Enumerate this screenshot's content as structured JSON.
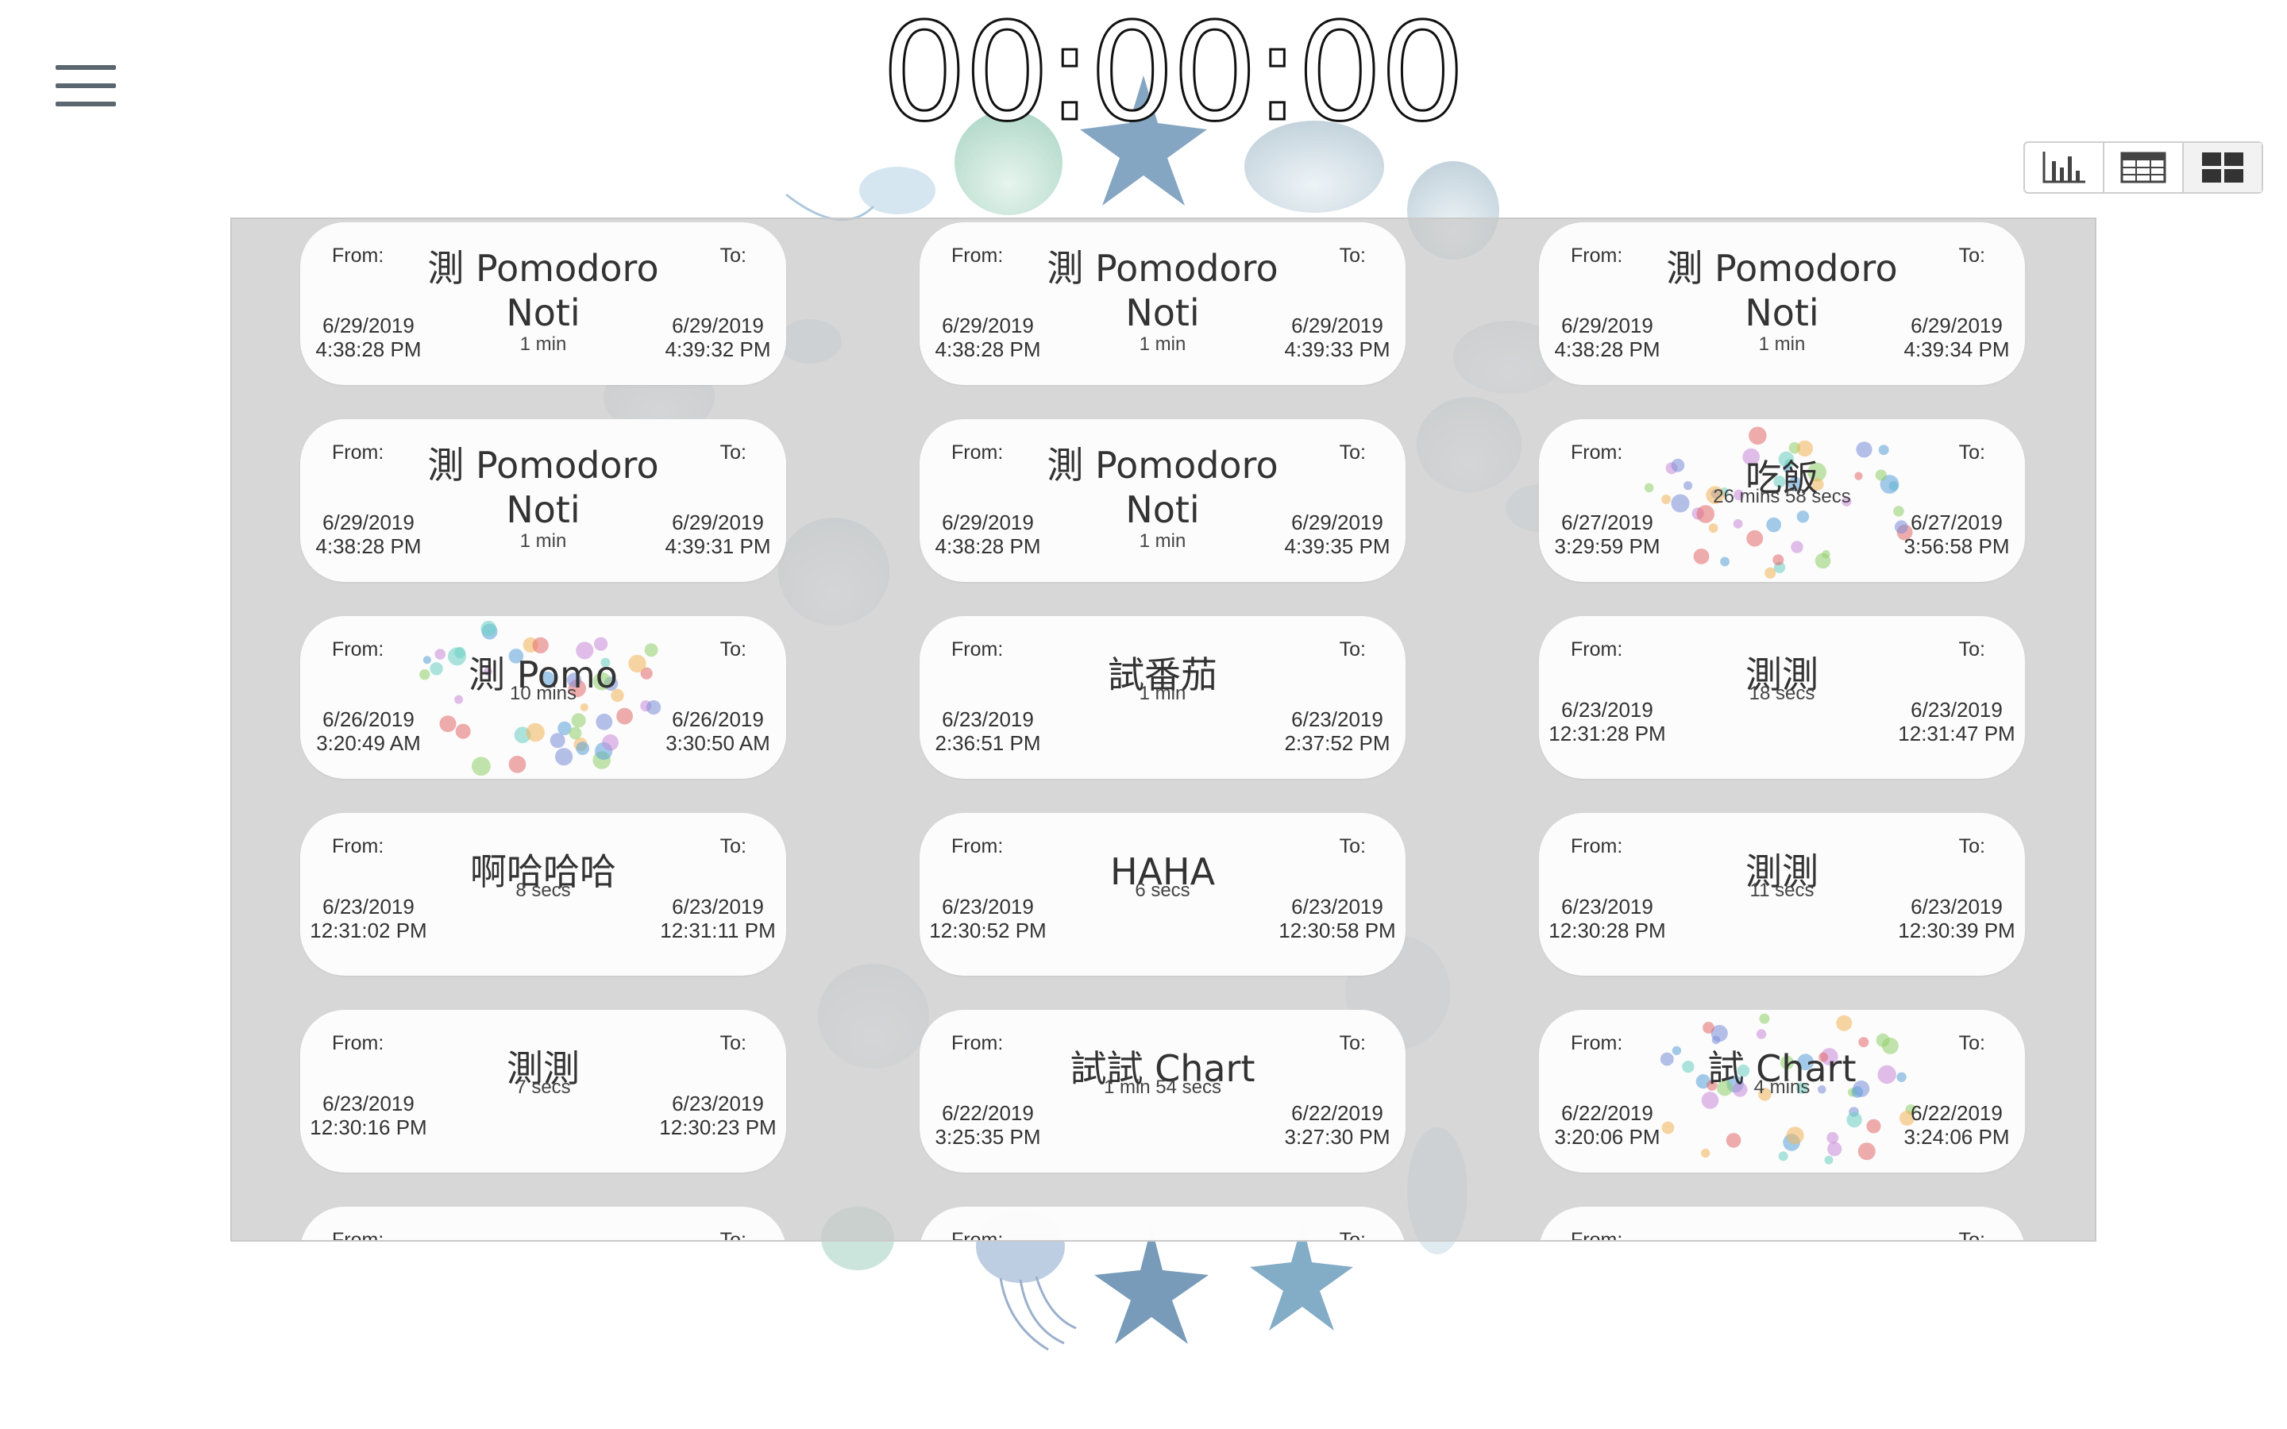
{
  "timer": {
    "display": "00:00:00"
  },
  "menu": {
    "icon": "hamburger-menu-icon"
  },
  "view_switch": [
    {
      "name": "chart-view",
      "icon": "bar-chart-icon",
      "active": false
    },
    {
      "name": "table-view",
      "icon": "table-icon",
      "active": false
    },
    {
      "name": "card-view",
      "icon": "grid-icon",
      "active": true
    }
  ],
  "labels": {
    "from": "From:",
    "to": "To:"
  },
  "records": [
    {
      "title": "測 Pomodoro Noti",
      "duration": "1 min",
      "from_date": "6/29/2019",
      "from_time": "4:38:28 PM",
      "to_date": "6/29/2019",
      "to_time": "4:39:32 PM"
    },
    {
      "title": "測 Pomodoro Noti",
      "duration": "1 min",
      "from_date": "6/29/2019",
      "from_time": "4:38:28 PM",
      "to_date": "6/29/2019",
      "to_time": "4:39:33 PM"
    },
    {
      "title": "測 Pomodoro Noti",
      "duration": "1 min",
      "from_date": "6/29/2019",
      "from_time": "4:38:28 PM",
      "to_date": "6/29/2019",
      "to_time": "4:39:34 PM"
    },
    {
      "title": "測 Pomodoro Noti",
      "duration": "1 min",
      "from_date": "6/29/2019",
      "from_time": "4:38:28 PM",
      "to_date": "6/29/2019",
      "to_time": "4:39:31 PM"
    },
    {
      "title": "測 Pomodoro Noti",
      "duration": "1 min",
      "from_date": "6/29/2019",
      "from_time": "4:38:28 PM",
      "to_date": "6/29/2019",
      "to_time": "4:39:35 PM"
    },
    {
      "title": "吃飯",
      "duration": "26 mins 58 secs",
      "from_date": "6/27/2019",
      "from_time": "3:29:59 PM",
      "to_date": "6/27/2019",
      "to_time": "3:56:58 PM",
      "background": true
    },
    {
      "title": "測 Pomo",
      "duration": "10 mins",
      "from_date": "6/26/2019",
      "from_time": "3:20:49 AM",
      "to_date": "6/26/2019",
      "to_time": "3:30:50 AM",
      "background": true
    },
    {
      "title": "試番茄",
      "duration": "1 min",
      "from_date": "6/23/2019",
      "from_time": "2:36:51 PM",
      "to_date": "6/23/2019",
      "to_time": "2:37:52 PM"
    },
    {
      "title": "測測",
      "duration": "18 secs",
      "from_date": "6/23/2019",
      "from_time": "12:31:28 PM",
      "to_date": "6/23/2019",
      "to_time": "12:31:47 PM"
    },
    {
      "title": "啊哈哈哈",
      "duration": "8 secs",
      "from_date": "6/23/2019",
      "from_time": "12:31:02 PM",
      "to_date": "6/23/2019",
      "to_time": "12:31:11 PM"
    },
    {
      "title": "HAHA",
      "duration": "6 secs",
      "from_date": "6/23/2019",
      "from_time": "12:30:52 PM",
      "to_date": "6/23/2019",
      "to_time": "12:30:58 PM"
    },
    {
      "title": "測測",
      "duration": "11 secs",
      "from_date": "6/23/2019",
      "from_time": "12:30:28 PM",
      "to_date": "6/23/2019",
      "to_time": "12:30:39 PM"
    },
    {
      "title": "測測",
      "duration": "7 secs",
      "from_date": "6/23/2019",
      "from_time": "12:30:16 PM",
      "to_date": "6/23/2019",
      "to_time": "12:30:23 PM"
    },
    {
      "title": "試試 Chart",
      "duration": "1 min 54 secs",
      "from_date": "6/22/2019",
      "from_time": "3:25:35 PM",
      "to_date": "6/22/2019",
      "to_time": "3:27:30 PM"
    },
    {
      "title": "試 Chart",
      "duration": "4 mins",
      "from_date": "6/22/2019",
      "from_time": "3:20:06 PM",
      "to_date": "6/22/2019",
      "to_time": "3:24:06 PM",
      "background": true
    },
    {
      "title": "",
      "duration": "",
      "from_date": "",
      "from_time": "",
      "to_date": "",
      "to_time": "",
      "partial": true
    },
    {
      "title": "",
      "duration": "",
      "from_date": "",
      "from_time": "",
      "to_date": "",
      "to_time": "",
      "partial": true
    },
    {
      "title": "",
      "duration": "",
      "from_date": "",
      "from_time": "",
      "to_date": "",
      "to_time": "",
      "partial": true
    }
  ]
}
